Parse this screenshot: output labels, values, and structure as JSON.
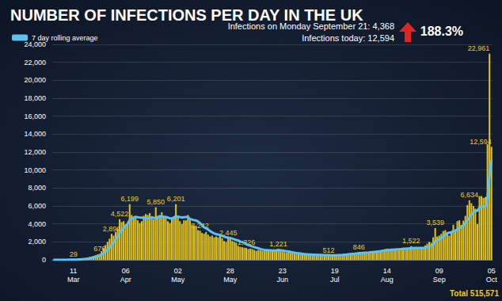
{
  "chart_data": {
    "type": "bar",
    "title": "NUMBER OF INFECTIONS PER DAY IN THE UK",
    "annotations": [
      "Infections on Monday September 21: 4,368",
      "Infections today: 12,594",
      "188.3%",
      "Total 515,571"
    ],
    "legend": "top-left",
    "grid": true,
    "data_labels": true,
    "categories": [
      null,
      null,
      null,
      null,
      null,
      null,
      null,
      null,
      null,
      null,
      "11 Mar",
      null,
      null,
      null,
      null,
      null,
      null,
      null,
      null,
      null,
      null,
      null,
      null,
      null,
      null,
      null,
      null,
      null,
      null,
      null,
      null,
      null,
      null,
      null,
      null,
      null,
      "06 Apr",
      null,
      null,
      null,
      null,
      null,
      null,
      null,
      null,
      null,
      null,
      null,
      null,
      null,
      null,
      null,
      null,
      null,
      null,
      null,
      null,
      null,
      null,
      null,
      null,
      null,
      "02 May",
      null,
      null,
      null,
      null,
      null,
      null,
      null,
      null,
      null,
      null,
      null,
      null,
      null,
      null,
      null,
      null,
      null,
      null,
      null,
      null,
      null,
      null,
      null,
      null,
      null,
      "28 May",
      null,
      null,
      null,
      null,
      null,
      null,
      null,
      null,
      null,
      null,
      null,
      null,
      null,
      null,
      null,
      null,
      null,
      null,
      null,
      null,
      null,
      null,
      null,
      null,
      null,
      "23 Jun",
      null,
      null,
      null,
      null,
      null,
      null,
      null,
      null,
      null,
      null,
      null,
      null,
      null,
      null,
      null,
      null,
      null,
      null,
      null,
      null,
      null,
      null,
      null,
      null,
      null,
      "19 Jul",
      null,
      null,
      null,
      null,
      null,
      null,
      null,
      null,
      null,
      null,
      null,
      null,
      null,
      null,
      null,
      null,
      null,
      null,
      null,
      null,
      null,
      null,
      null,
      null,
      null,
      "14 Aug",
      null,
      null,
      null,
      null,
      null,
      null,
      null,
      null,
      null,
      null,
      null,
      null,
      null,
      null,
      null,
      null,
      null,
      null,
      null,
      null,
      null,
      null,
      null,
      null,
      null,
      "09 Sep",
      null,
      null,
      null,
      null,
      null,
      null,
      null,
      null,
      null,
      null,
      null,
      null,
      null,
      null,
      null,
      null,
      null,
      null,
      null,
      null,
      null,
      null,
      null,
      null,
      null,
      "05 Oct"
    ],
    "series": [
      {
        "type": "bar",
        "color": "#e3c316",
        "values": [
          3,
          4,
          6,
          8,
          10,
          12,
          14,
          16,
          20,
          24,
          29,
          48,
          70,
          95,
          120,
          150,
          190,
          240,
          300,
          370,
          440,
          520,
          600,
          676,
          980,
          1300,
          1650,
          2000,
          2350,
          2890,
          2700,
          3100,
          3500,
          4522,
          4200,
          4300,
          3900,
          4100,
          6199,
          5000,
          4700,
          4800,
          4400,
          4100,
          4300,
          4900,
          5100,
          5000,
          5200,
          4800,
          4500,
          5850,
          4700,
          5000,
          5300,
          4900,
          4700,
          4300,
          4100,
          4500,
          4800,
          6201,
          4800,
          4300,
          4000,
          4400,
          4400,
          5000,
          4600,
          3900,
          3800,
          3800,
          3300,
          3242,
          3000,
          2900,
          3100,
          2800,
          2600,
          2700,
          2500,
          2600,
          2500,
          2900,
          2400,
          2100,
          2000,
          2445,
          2300,
          2100,
          2000,
          1900,
          1550,
          1450,
          1400,
          1350,
          1326,
          1200,
          1250,
          1200,
          1100,
          1000,
          1100,
          1050,
          1000,
          1100,
          1050,
          1000,
          1100,
          1000,
          1050,
          1100,
          1221,
          950,
          900,
          850,
          800,
          820,
          780,
          750,
          700,
          680,
          650,
          620,
          600,
          580,
          560,
          540,
          560,
          600,
          550,
          520,
          530,
          500,
          480,
          500,
          490,
          512,
          480,
          500,
          520,
          560,
          580,
          600,
          620,
          650,
          680,
          700,
          720,
          740,
          760,
          800,
          846,
          820,
          800,
          780,
          850,
          900,
          950,
          980,
          1000,
          1020,
          1050,
          1100,
          1150,
          1200,
          1250,
          1200,
          1150,
          1100,
          1150,
          1200,
          1250,
          1300,
          1350,
          1300,
          1250,
          1350,
          1522,
          1400,
          1350,
          1300,
          1250,
          1300,
          1400,
          1600,
          1800,
          2000,
          1900,
          2500,
          3539,
          2600,
          2700,
          2900,
          3200,
          3300,
          3100,
          2700,
          3100,
          3900,
          3400,
          4300,
          4400,
          3900,
          4368,
          4900,
          6100,
          6634,
          6300,
          6000,
          5700,
          4000,
          7100,
          7100,
          6900,
          7000,
          12872,
          22961,
          12594
        ],
        "value_labels": [
          null,
          null,
          null,
          null,
          null,
          null,
          null,
          null,
          null,
          null,
          "29",
          null,
          null,
          null,
          null,
          null,
          null,
          null,
          null,
          null,
          null,
          null,
          null,
          "676",
          null,
          null,
          null,
          null,
          null,
          "2,890",
          null,
          null,
          null,
          "4,522",
          null,
          null,
          null,
          null,
          "6,199",
          null,
          null,
          null,
          null,
          null,
          null,
          null,
          null,
          null,
          null,
          null,
          null,
          "5,850",
          null,
          null,
          null,
          null,
          null,
          null,
          null,
          null,
          null,
          "6,201",
          null,
          null,
          null,
          null,
          null,
          null,
          null,
          null,
          null,
          null,
          null,
          "3,242",
          null,
          null,
          null,
          null,
          null,
          null,
          null,
          null,
          null,
          null,
          null,
          null,
          null,
          "2,445",
          null,
          null,
          null,
          null,
          null,
          null,
          null,
          null,
          "1,326",
          null,
          null,
          null,
          null,
          null,
          null,
          null,
          null,
          null,
          null,
          null,
          null,
          null,
          null,
          null,
          "1,221",
          null,
          null,
          null,
          null,
          null,
          null,
          null,
          null,
          null,
          null,
          null,
          null,
          null,
          null,
          null,
          null,
          null,
          null,
          null,
          null,
          null,
          null,
          null,
          null,
          "512",
          null,
          null,
          null,
          null,
          null,
          null,
          null,
          null,
          null,
          null,
          null,
          null,
          null,
          null,
          "846",
          null,
          null,
          null,
          null,
          null,
          null,
          null,
          null,
          null,
          null,
          null,
          null,
          null,
          null,
          null,
          null,
          null,
          null,
          null,
          null,
          null,
          null,
          null,
          null,
          null,
          "1,522",
          null,
          null,
          null,
          null,
          null,
          null,
          null,
          null,
          null,
          null,
          null,
          "3,539",
          null,
          null,
          null,
          null,
          null,
          null,
          null,
          null,
          null,
          null,
          null,
          null,
          null,
          null,
          null,
          null,
          "6,634",
          null,
          null,
          null,
          null,
          null,
          null,
          null,
          null,
          null,
          "22,961",
          "12,594"
        ]
      },
      {
        "type": "line",
        "name": "7 day rolling average",
        "color": "#5cc2f2",
        "values": [
          2,
          3,
          4,
          5,
          7,
          8,
          10,
          11,
          13,
          15,
          18,
          25,
          35,
          48,
          64,
          83,
          106,
          134,
          170,
          215,
          265,
          320,
          380,
          450,
          570,
          730,
          910,
          1110,
          1360,
          1680,
          1950,
          2260,
          2580,
          2990,
          3260,
          3540,
          3810,
          4010,
          4450,
          4600,
          4700,
          4800,
          4750,
          4710,
          4690,
          4660,
          4630,
          4640,
          4690,
          4740,
          4680,
          4640,
          4780,
          4790,
          4840,
          4790,
          4780,
          4720,
          4620,
          4630,
          4690,
          4880,
          4800,
          4760,
          4730,
          4750,
          4760,
          4770,
          4540,
          4490,
          4420,
          4390,
          4270,
          4100,
          3890,
          3620,
          3510,
          3370,
          3210,
          3070,
          2950,
          2870,
          2810,
          2750,
          2660,
          2590,
          2510,
          2480,
          2430,
          2370,
          2290,
          2210,
          2160,
          2040,
          1980,
          1880,
          1740,
          1650,
          1570,
          1490,
          1420,
          1340,
          1290,
          1200,
          1160,
          1110,
          1090,
          1060,
          1060,
          1040,
          1040,
          1050,
          1080,
          1060,
          1040,
          1000,
          960,
          920,
          880,
          830,
          790,
          760,
          730,
          700,
          670,
          640,
          620,
          600,
          590,
          580,
          570,
          560,
          550,
          550,
          540,
          540,
          540,
          530,
          500,
          500,
          500,
          510,
          530,
          540,
          550,
          570,
          590,
          620,
          640,
          660,
          680,
          710,
          740,
          760,
          780,
          790,
          800,
          810,
          830,
          850,
          870,
          900,
          930,
          960,
          990,
          1020,
          1060,
          1090,
          1120,
          1130,
          1150,
          1170,
          1180,
          1200,
          1220,
          1240,
          1250,
          1260,
          1300,
          1320,
          1330,
          1330,
          1320,
          1320,
          1330,
          1350,
          1410,
          1480,
          1550,
          1720,
          2040,
          2180,
          2310,
          2450,
          2580,
          2760,
          2950,
          3020,
          3080,
          3200,
          3230,
          3360,
          3540,
          3650,
          3820,
          4080,
          4410,
          4720,
          5060,
          5290,
          5480,
          5440,
          5820,
          5970,
          5940,
          5900,
          6900,
          9400,
          11100
        ]
      }
    ],
    "ylim": [
      0,
      24000
    ],
    "yticks": [
      0,
      {
        "value": 2000,
        "label": "2,000"
      },
      {
        "value": 4000,
        "label": "4,000"
      },
      {
        "value": 6000,
        "label": "6,000"
      },
      {
        "value": 8000,
        "label": "8,000"
      },
      {
        "value": 10000,
        "label": "10,000"
      },
      {
        "value": 12000,
        "label": "12,000"
      },
      {
        "value": 14000,
        "label": "14,000"
      },
      {
        "value": 16000,
        "label": "16,000"
      },
      {
        "value": 18000,
        "label": "18,000"
      },
      {
        "value": 20000,
        "label": "20,000"
      },
      {
        "value": 22000,
        "label": "22,000"
      },
      {
        "value": 24000,
        "label": "24,000"
      }
    ]
  }
}
